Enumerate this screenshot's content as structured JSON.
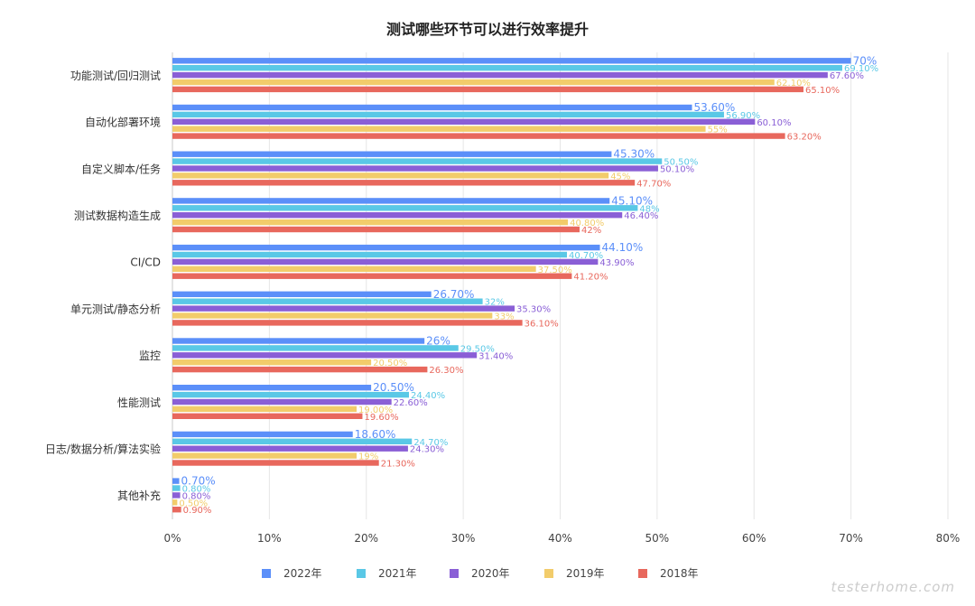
{
  "chart_data": {
    "type": "bar",
    "orientation": "horizontal",
    "title": "测试哪些环节可以进行效率提升",
    "categories": [
      "功能测试/回归测试",
      "自动化部署环境",
      "自定义脚本/任务",
      "测试数据构造生成",
      "CI/CD",
      "单元测试/静态分析",
      "监控",
      "性能测试",
      "日志/数据分析/算法实验",
      "其他补充"
    ],
    "series": [
      {
        "name": "2022年",
        "color": "#5b8ff9",
        "values": [
          70,
          53.6,
          45.3,
          45.1,
          44.1,
          26.7,
          26,
          20.5,
          18.6,
          0.7
        ],
        "labels": [
          "70%",
          "53.60%",
          "45.30%",
          "45.10%",
          "44.10%",
          "26.70%",
          "26%",
          "20.50%",
          "18.60%",
          "0.70%"
        ]
      },
      {
        "name": "2021年",
        "color": "#5ac8e6",
        "values": [
          69.1,
          56.9,
          50.5,
          48,
          40.7,
          32,
          29.5,
          24.4,
          24.7,
          0.8
        ],
        "labels": [
          "69.10%",
          "56.90%",
          "50.50%",
          "48%",
          "40.70%",
          "32%",
          "29.50%",
          "24.40%",
          "24.70%",
          "0.80%"
        ]
      },
      {
        "name": "2020年",
        "color": "#8a5fd6",
        "values": [
          67.6,
          60.1,
          50.1,
          46.4,
          43.9,
          35.3,
          31.4,
          22.6,
          24.3,
          0.8
        ],
        "labels": [
          "67.60%",
          "60.10%",
          "50.10%",
          "46.40%",
          "43.90%",
          "35.30%",
          "31.40%",
          "22.60%",
          "24.30%",
          "0.80%"
        ]
      },
      {
        "name": "2019年",
        "color": "#f2cc6b",
        "values": [
          62.1,
          55,
          45,
          40.8,
          37.5,
          33,
          20.5,
          19,
          19,
          0.5
        ],
        "labels": [
          "62.10%",
          "55%",
          "45%",
          "40.80%",
          "37.50%",
          "33%",
          "20.50%",
          "19.00%",
          "19%",
          "0.50%"
        ]
      },
      {
        "name": "2018年",
        "color": "#e8685d",
        "values": [
          65.1,
          63.2,
          47.7,
          42,
          41.2,
          36.1,
          26.3,
          19.6,
          21.3,
          0.9
        ],
        "labels": [
          "65.10%",
          "63.20%",
          "47.70%",
          "42%",
          "41.20%",
          "36.10%",
          "26.30%",
          "19.60%",
          "21.30%",
          "0.90%"
        ]
      }
    ],
    "xlim": [
      0,
      80
    ],
    "x_ticks": [
      0,
      10,
      20,
      30,
      40,
      50,
      60,
      70,
      80
    ],
    "x_tick_labels": [
      "0%",
      "10%",
      "20%",
      "30%",
      "40%",
      "50%",
      "60%",
      "70%",
      "80%"
    ],
    "xlabel": "",
    "ylabel": "",
    "grid": "vertical",
    "legend_position": "bottom"
  },
  "watermark": "testerhome.com"
}
